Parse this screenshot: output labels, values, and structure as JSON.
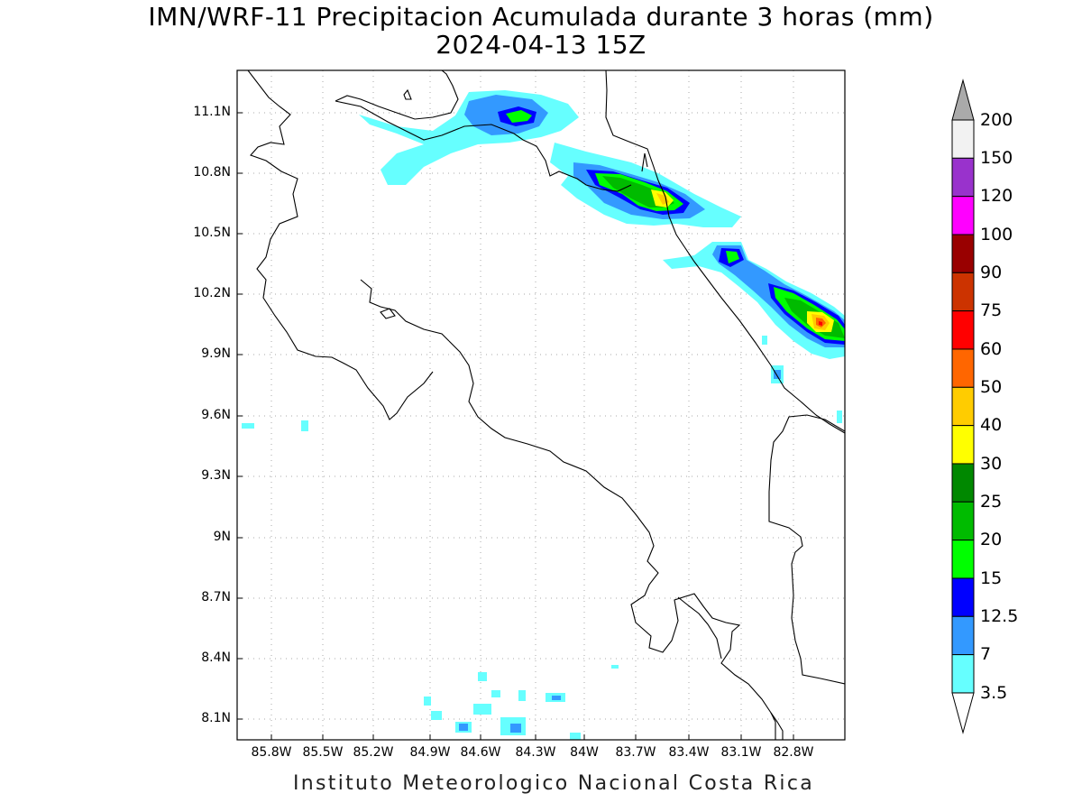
{
  "title": "IMN/WRF-11 Precipitacion Acumulada durante 3 horas (mm)",
  "subtitle": "2024-04-13 15Z",
  "footer": "Instituto Meteorologico Nacional Costa Rica",
  "y_ticks": [
    "11.1N",
    "10.8N",
    "10.5N",
    "10.2N",
    "9.9N",
    "9.6N",
    "9.3N",
    "9N",
    "8.7N",
    "8.4N",
    "8.1N"
  ],
  "x_ticks": [
    "85.8W",
    "85.5W",
    "85.2W",
    "84.9W",
    "84.6W",
    "84.3W",
    "84W",
    "83.7W",
    "83.4W",
    "83.1W",
    "82.8W"
  ],
  "colorbar": {
    "labels": [
      "200",
      "150",
      "120",
      "100",
      "90",
      "75",
      "60",
      "50",
      "40",
      "30",
      "25",
      "20",
      "15",
      "12.5",
      "7",
      "3.5"
    ],
    "colors": [
      "#f2f2f2",
      "#9932cc",
      "#ff00ff",
      "#990000",
      "#cc3300",
      "#ff0000",
      "#ff6600",
      "#ffcc00",
      "#ffff00",
      "#008800",
      "#00bb00",
      "#00ff00",
      "#0000ff",
      "#3399ff",
      "#66ffff"
    ],
    "over_color": "#aaaaaa",
    "under_color": "#ffffff"
  },
  "legend_color_by_level": {
    "3.5": "#66ffff",
    "7": "#3399ff",
    "12.5": "#0000ff",
    "15": "#00ff00",
    "20": "#00bb00",
    "25": "#008800",
    "30": "#ffff00",
    "40": "#ffcc00",
    "50": "#ff6600",
    "60": "#ff0000"
  },
  "map": {
    "lon_range": [
      -86.0,
      -82.6
    ],
    "lat_range": [
      8.0,
      11.3
    ],
    "grid": "dotted",
    "border_color": "#000000"
  }
}
